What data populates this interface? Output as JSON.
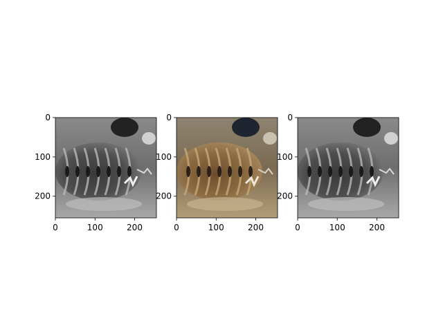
{
  "figure": {
    "background": "#ffffff",
    "panels": [
      {
        "name": "grayscale-left",
        "mode": "grayscale",
        "image_content": "chiton on rock",
        "x_ticks": [
          "0",
          "100",
          "200"
        ],
        "y_ticks": [
          "0",
          "100",
          "200"
        ],
        "xlim": [
          0,
          255
        ],
        "ylim": [
          255,
          0
        ]
      },
      {
        "name": "color-center",
        "mode": "color",
        "image_content": "chiton on rock",
        "x_ticks": [
          "0",
          "100",
          "200"
        ],
        "y_ticks": [
          "0",
          "100",
          "200"
        ],
        "xlim": [
          0,
          255
        ],
        "ylim": [
          255,
          0
        ]
      },
      {
        "name": "grayscale-right",
        "mode": "grayscale",
        "image_content": "chiton on rock",
        "x_ticks": [
          "0",
          "100",
          "200"
        ],
        "y_ticks": [
          "0",
          "100",
          "200"
        ],
        "xlim": [
          0,
          255
        ],
        "ylim": [
          255,
          0
        ]
      }
    ]
  }
}
